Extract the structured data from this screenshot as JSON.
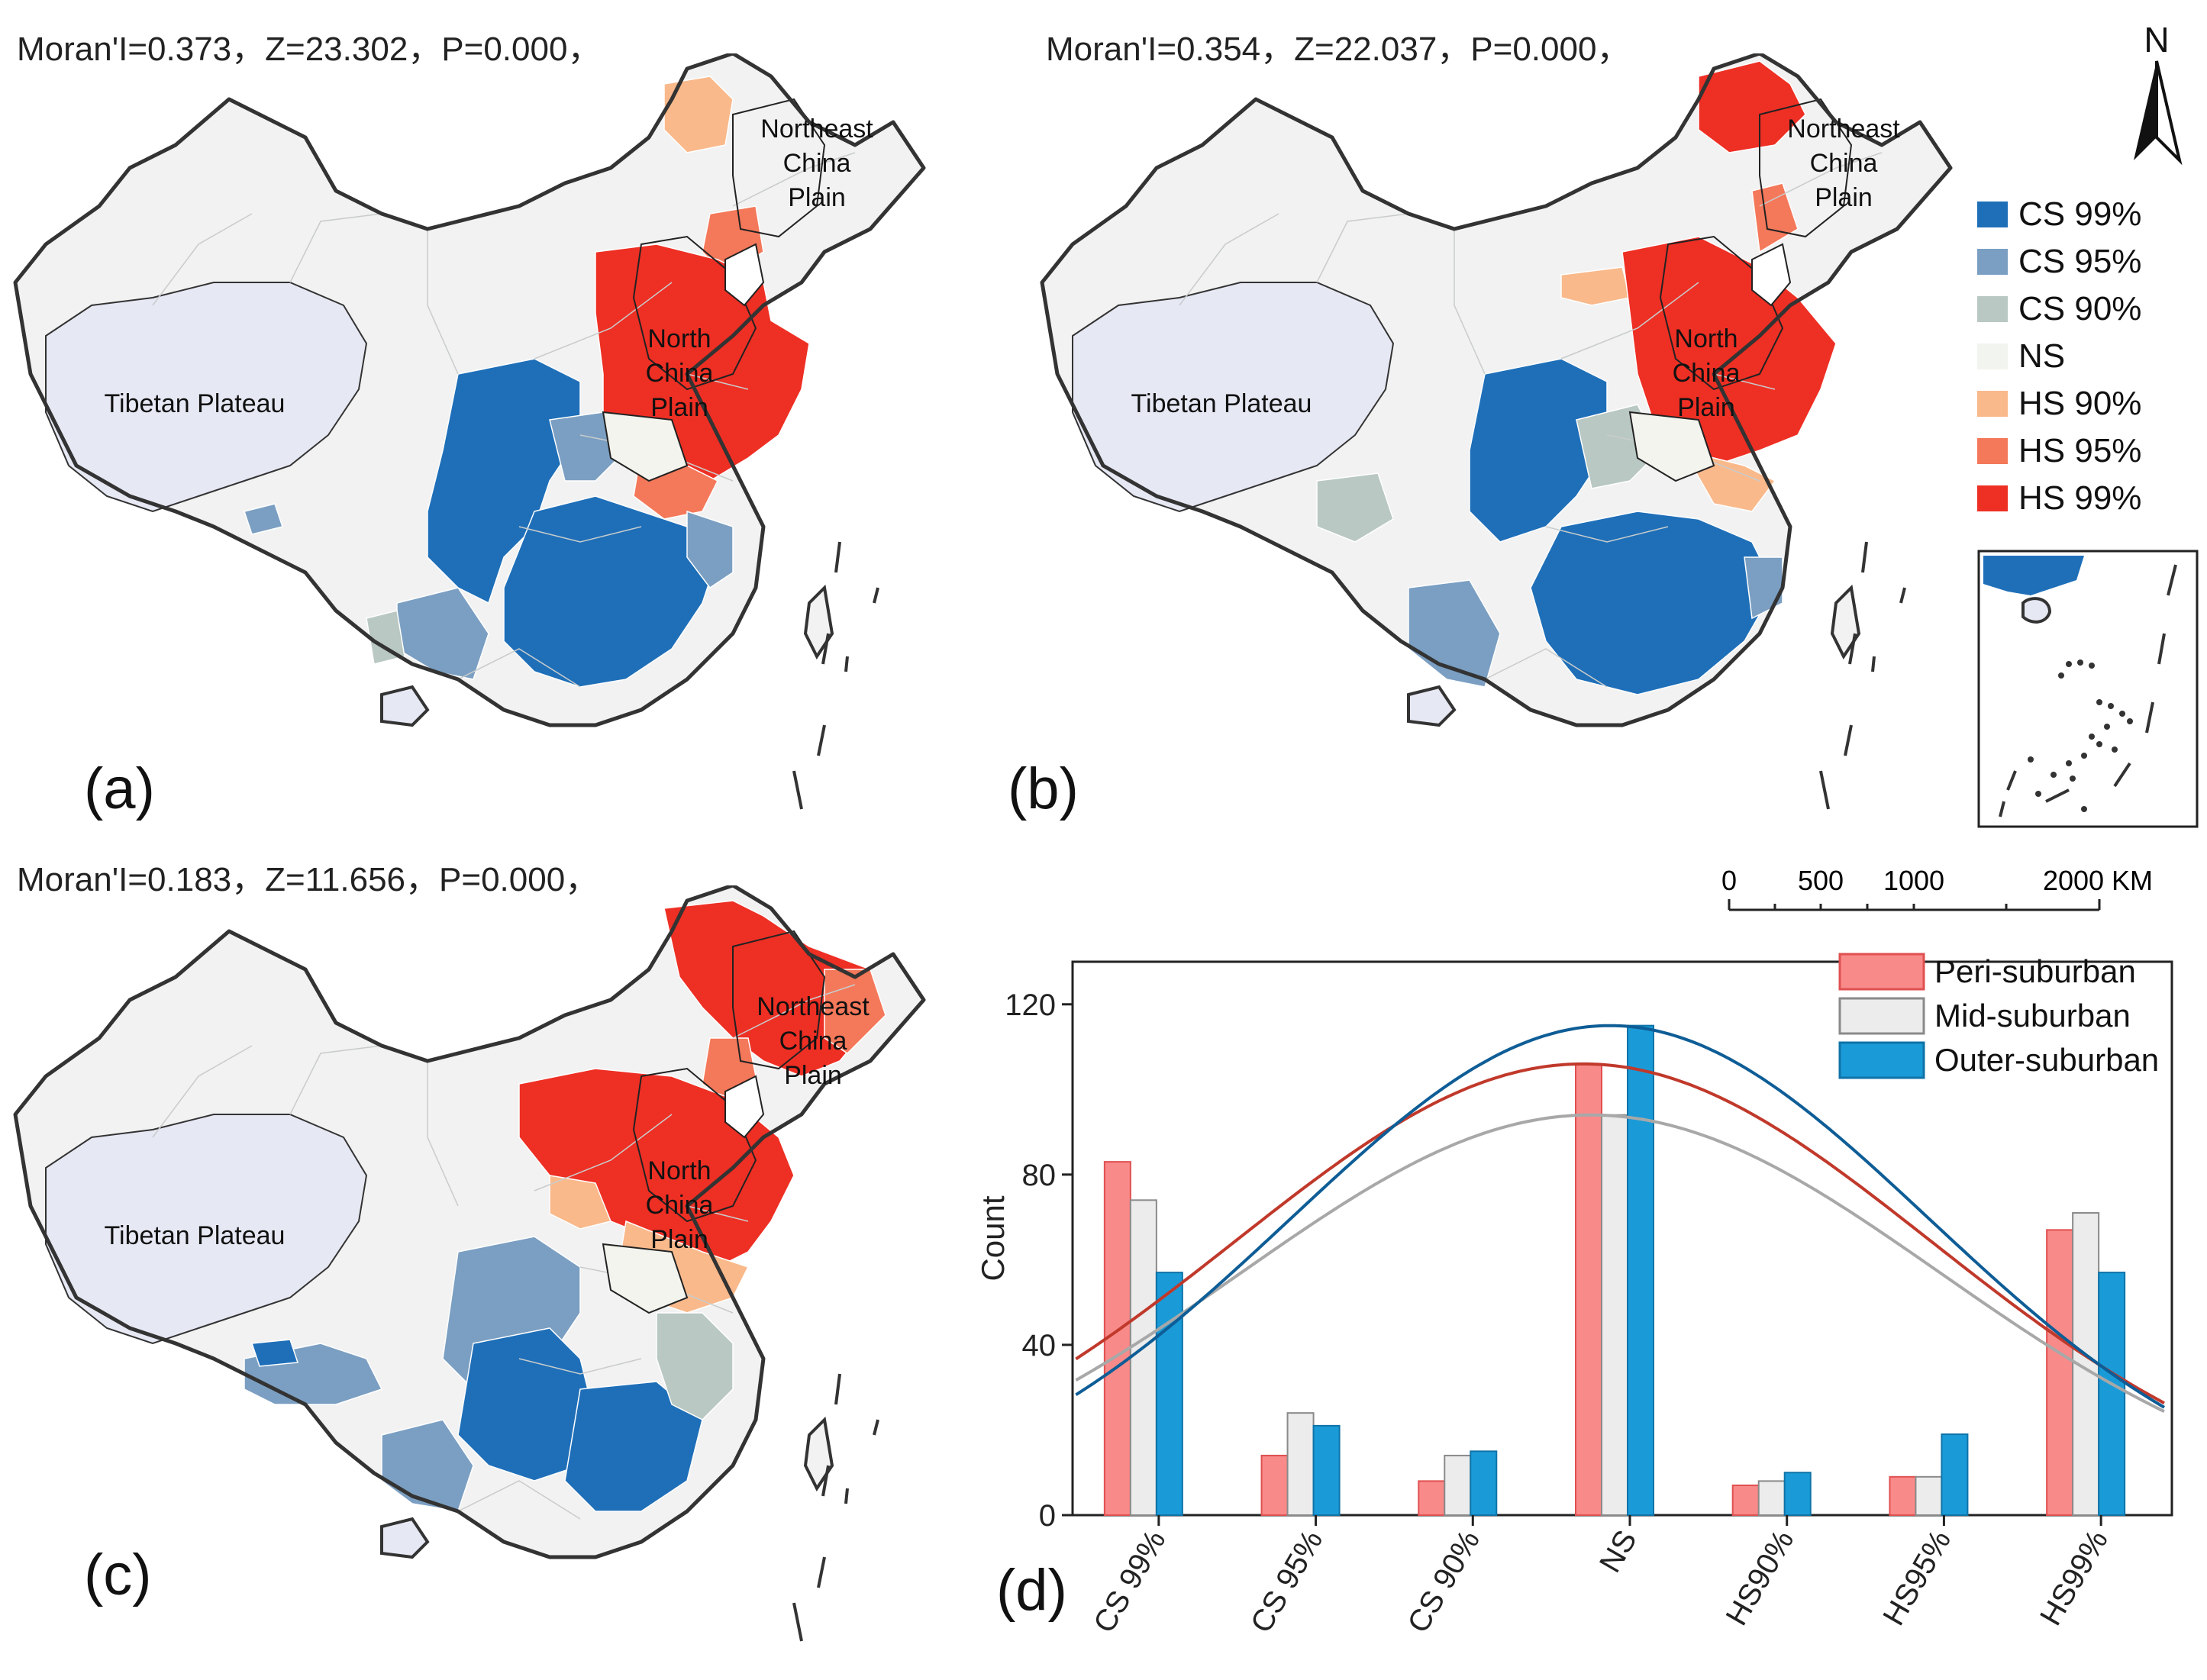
{
  "panels": [
    {
      "label": "(a)",
      "stats": "Moran'I=0.373，Z=23.302，P=0.000，"
    },
    {
      "label": "(b)",
      "stats": "Moran'I=0.354，Z=22.037，P=0.000，"
    },
    {
      "label": "(c)",
      "stats": "Moran'I=0.183，Z=11.656，P=0.000，"
    },
    {
      "label": "(d)"
    }
  ],
  "map_labels": {
    "northeast": [
      "Northeast",
      "China",
      "Plain"
    ],
    "north": [
      "North",
      "China",
      "Plain"
    ],
    "tibet": "Tibetan Plateau"
  },
  "north_arrow": "N",
  "legend": [
    {
      "label": "CS 99%",
      "color": "#1f6fb8"
    },
    {
      "label": "CS 95%",
      "color": "#7b9fc2"
    },
    {
      "label": "CS 90%",
      "color": "#b9c8c2"
    },
    {
      "label": "NS",
      "color": "#f2f4f0"
    },
    {
      "label": "HS 90%",
      "color": "#f9b98b"
    },
    {
      "label": "HS 95%",
      "color": "#f4785a"
    },
    {
      "label": "HS 99%",
      "color": "#ee2f24"
    }
  ],
  "scale_bar": {
    "ticks": [
      "0",
      "500",
      "1000",
      "2000 KM"
    ]
  },
  "region_colors": {
    "plateau": "#e6e8f4",
    "background_land": "#f1f2f1"
  },
  "chart_data": {
    "type": "bar",
    "categories": [
      "CS 99%",
      "CS 95%",
      "CS 90%",
      "NS",
      "HS90%",
      "HS95%",
      "HS99%"
    ],
    "series": [
      {
        "name": "Peri-suburban",
        "values": [
          83,
          14,
          8,
          106,
          7,
          9,
          67
        ],
        "fill": "#f98a8a",
        "stroke": "#e05050",
        "curve": "#c0392b",
        "curve_peak": 106
      },
      {
        "name": "Mid-suburban",
        "values": [
          74,
          24,
          14,
          94,
          8,
          9,
          71
        ],
        "fill": "#ececec",
        "stroke": "#8a8a8a",
        "curve": "#a8a8a8",
        "curve_peak": 94
      },
      {
        "name": "Outer-suburban",
        "values": [
          57,
          21,
          15,
          115,
          10,
          19,
          57
        ],
        "fill": "#1a9bd7",
        "stroke": "#0f73a8",
        "curve": "#0e5d96",
        "curve_peak": 115
      }
    ],
    "ylabel": "Count",
    "xlabel": "",
    "ylim": [
      0,
      130
    ],
    "yticks": [
      0,
      40,
      80,
      120
    ],
    "legend_position": "top-right",
    "fit_curve": "normal distribution fit per series"
  }
}
